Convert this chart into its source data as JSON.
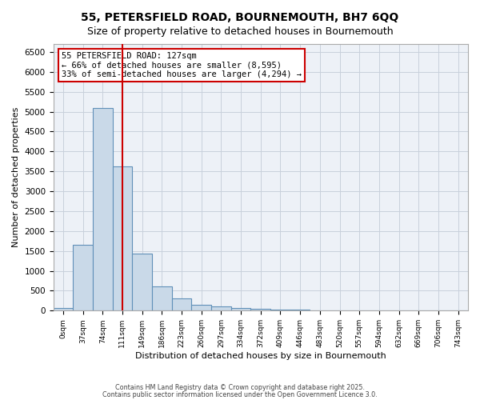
{
  "title1": "55, PETERSFIELD ROAD, BOURNEMOUTH, BH7 6QQ",
  "title2": "Size of property relative to detached houses in Bournemouth",
  "xlabel": "Distribution of detached houses by size in Bournemouth",
  "ylabel": "Number of detached properties",
  "bar_labels": [
    "0sqm",
    "37sqm",
    "74sqm",
    "111sqm",
    "149sqm",
    "186sqm",
    "223sqm",
    "260sqm",
    "297sqm",
    "334sqm",
    "372sqm",
    "409sqm",
    "446sqm",
    "483sqm",
    "520sqm",
    "557sqm",
    "594sqm",
    "632sqm",
    "669sqm",
    "706sqm",
    "743sqm"
  ],
  "bar_heights": [
    60,
    1650,
    5100,
    3620,
    1430,
    620,
    310,
    150,
    100,
    70,
    50,
    30,
    20,
    15,
    10,
    8,
    5,
    3,
    2,
    1,
    0
  ],
  "bar_color": "#c9d9e8",
  "bar_edge_color": "#6090b8",
  "ylim": [
    0,
    6700
  ],
  "yticks": [
    0,
    500,
    1000,
    1500,
    2000,
    2500,
    3000,
    3500,
    4000,
    4500,
    5000,
    5500,
    6000,
    6500
  ],
  "property_line_x": 3.0,
  "property_line_color": "#cc0000",
  "annotation_title": "55 PETERSFIELD ROAD: 127sqm",
  "annotation_line2": "← 66% of detached houses are smaller (8,595)",
  "annotation_line3": "33% of semi-detached houses are larger (4,294) →",
  "annotation_box_color": "#cc0000",
  "footer1": "Contains HM Land Registry data © Crown copyright and database right 2025.",
  "footer2": "Contains public sector information licensed under the Open Government Licence 3.0.",
  "bg_color": "#edf1f7",
  "grid_color": "#c8d0dc"
}
